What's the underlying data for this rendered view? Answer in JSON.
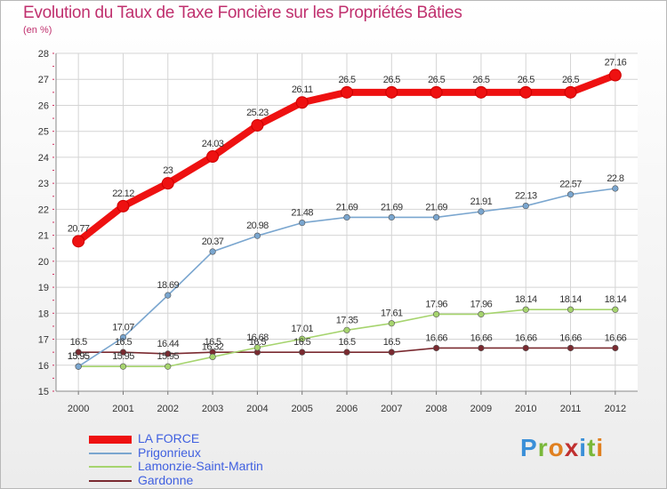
{
  "logo": {
    "p": "P",
    "r": "r",
    "o": "o",
    "x": "x",
    "i": "i",
    "t": "t",
    "i2": "i"
  },
  "chart_data": {
    "type": "line",
    "title": "Evolution du Taux de Taxe Foncière sur les Propriétés Bâties",
    "ylabel": "(en %)",
    "xlabel": "",
    "x": [
      "2000",
      "2001",
      "2002",
      "2003",
      "2004",
      "2005",
      "2006",
      "2007",
      "2008",
      "2009",
      "2010",
      "2011",
      "2012"
    ],
    "ylim": [
      15,
      28
    ],
    "yticks": [
      15,
      16,
      17,
      18,
      19,
      20,
      21,
      22,
      23,
      24,
      25,
      26,
      27,
      28
    ],
    "grid": true,
    "legend_position": "bottom-left",
    "series": [
      {
        "name": "LA FORCE",
        "color": "#ee1111",
        "values": [
          20.77,
          22.12,
          23,
          24.03,
          25.23,
          26.11,
          26.5,
          26.5,
          26.5,
          26.5,
          26.5,
          26.5,
          27.16
        ],
        "labels": [
          "20.77",
          "22.12",
          "23",
          "24.03",
          "25.23",
          "26.11",
          "26.5",
          "26.5",
          "26.5",
          "26.5",
          "26.5",
          "26.5",
          "27.16"
        ]
      },
      {
        "name": "Prigonrieux",
        "color": "#7aa6cf",
        "values": [
          15.95,
          17.07,
          18.69,
          20.37,
          20.98,
          21.48,
          21.69,
          21.69,
          21.69,
          21.91,
          22.13,
          22.57,
          22.8
        ],
        "labels": [
          "15.95",
          "17.07",
          "18.69",
          "20.37",
          "20.98",
          "21.48",
          "21.69",
          "21.69",
          "21.69",
          "21.91",
          "22.13",
          "22.57",
          "22.8"
        ]
      },
      {
        "name": "Lamonzie-Saint-Martin",
        "color": "#a6d46e",
        "values": [
          15.95,
          15.95,
          15.95,
          16.32,
          16.68,
          17.01,
          17.35,
          17.61,
          17.96,
          17.96,
          18.14,
          18.14,
          18.14
        ],
        "labels": [
          "15.95",
          "15.95",
          "15.95",
          "16.32",
          "16.68",
          "17.01",
          "17.35",
          "17.61",
          "17.96",
          "17.96",
          "18.14",
          "18.14",
          "18.14"
        ]
      },
      {
        "name": "Gardonne",
        "color": "#7a2a30",
        "values": [
          16.5,
          16.5,
          16.44,
          16.5,
          16.5,
          16.5,
          16.5,
          16.5,
          16.66,
          16.66,
          16.66,
          16.66,
          16.66
        ],
        "labels": [
          "16.5",
          "16.5",
          "16.44",
          "16.5",
          "16.5",
          "16.5",
          "16.5",
          "16.5",
          "16.66",
          "16.66",
          "16.66",
          "16.66",
          "16.66"
        ]
      }
    ]
  }
}
